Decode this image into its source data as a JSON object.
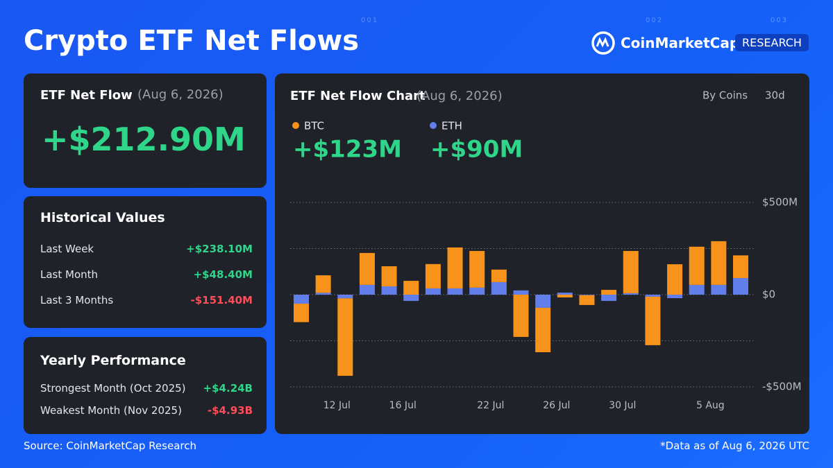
{
  "header": {
    "title": "Crypto ETF Net Flows",
    "brand": "CoinMarketCap",
    "badge": "RESEARCH",
    "marks": [
      "001",
      "002",
      "003"
    ]
  },
  "net_flow": {
    "title": "ETF Net Flow",
    "date": "(Aug 6, 2026)",
    "value": "+$212.90M"
  },
  "historical": {
    "title": "Historical Values",
    "rows": [
      {
        "label": "Last Week",
        "value": "+$238.10M",
        "sign": "pos"
      },
      {
        "label": "Last Month",
        "value": "+$48.40M",
        "sign": "pos"
      },
      {
        "label": "Last 3 Months",
        "value": "-$151.40M",
        "sign": "neg"
      }
    ]
  },
  "yearly": {
    "title": "Yearly Performance",
    "rows": [
      {
        "label": "Strongest Month (Oct 2025)",
        "value": "+$4.24B",
        "sign": "pos"
      },
      {
        "label": "Weakest Month (Nov 2025)",
        "value": "-$4.93B",
        "sign": "neg"
      }
    ]
  },
  "footer": {
    "source": "Source: CoinMarketCap Research",
    "note": "*Data as of Aug 6, 2026 UTC"
  },
  "chart_data": {
    "type": "stacked_bar",
    "title": "ETF Net Flow Chart",
    "subtitle": "(Aug 6, 2026)",
    "controls": [
      "By Coins",
      "30d"
    ],
    "categories": [
      null,
      null,
      "12 Jul",
      null,
      null,
      "16 Jul",
      null,
      null,
      null,
      "22 Jul",
      null,
      null,
      "26 Jul",
      null,
      null,
      "30 Jul",
      null,
      null,
      null,
      "5 Aug",
      null
    ],
    "series": [
      {
        "name": "BTC",
        "color": "#f7931a",
        "total_label": "+$123M",
        "values": [
          -100,
          95,
          -420,
          173,
          109,
          75,
          132,
          222,
          199,
          68,
          -229,
          -241,
          -15,
          -53,
          26,
          229,
          -263,
          165,
          207,
          237,
          123
        ]
      },
      {
        "name": "ETH",
        "color": "#627eea",
        "total_label": "+$90M",
        "values": [
          -49,
          10,
          -20,
          53,
          45,
          -34,
          34,
          34,
          38,
          68,
          23,
          -71,
          11,
          -3,
          -34,
          8,
          -11,
          -19,
          53,
          53,
          90
        ]
      }
    ],
    "ylim": [
      -500,
      500
    ],
    "yticks": [
      {
        "value": -500,
        "label": "-$500M"
      },
      {
        "value": 0,
        "label": "$0"
      },
      {
        "value": 500,
        "label": "$500M"
      }
    ],
    "minor_yticks": [
      -250,
      250
    ],
    "grid": true
  }
}
